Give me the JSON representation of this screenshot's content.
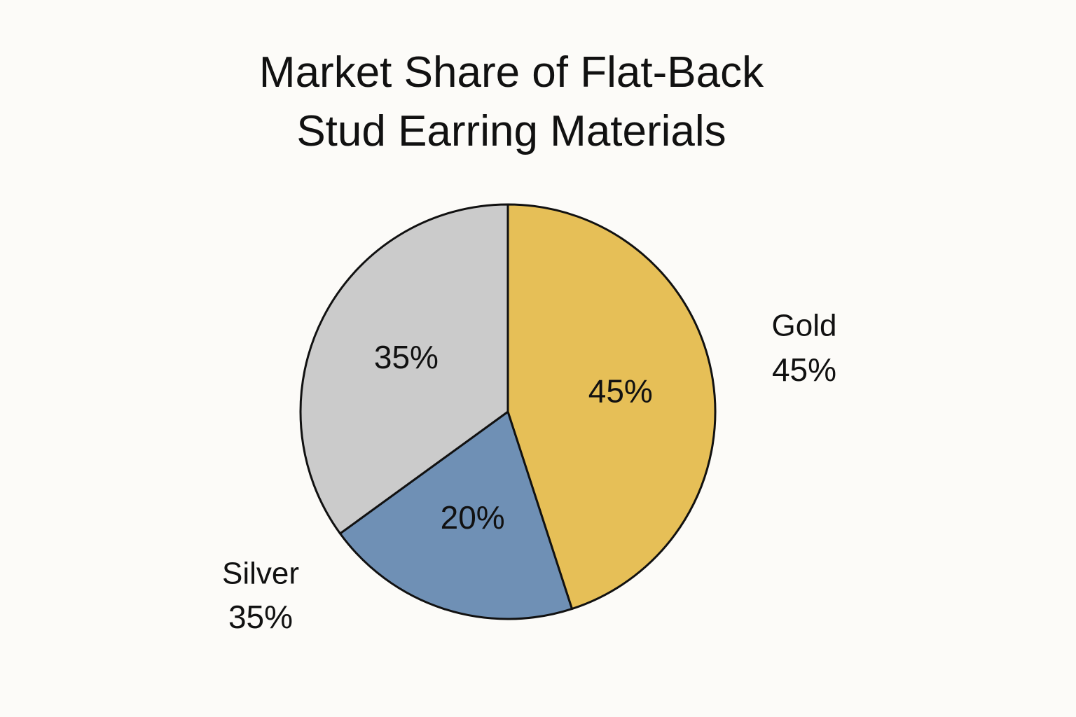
{
  "chart_data": {
    "type": "pie",
    "title": "Market Share of Flat-Back Stud Earring Materials",
    "categories": [
      "Gold",
      null,
      "Silver"
    ],
    "values": [
      45,
      20,
      35
    ],
    "value_labels": [
      "45%",
      "20%",
      "35%"
    ],
    "colors": [
      "#e6bf57",
      "#6f90b5",
      "#cbcbcb"
    ]
  }
}
